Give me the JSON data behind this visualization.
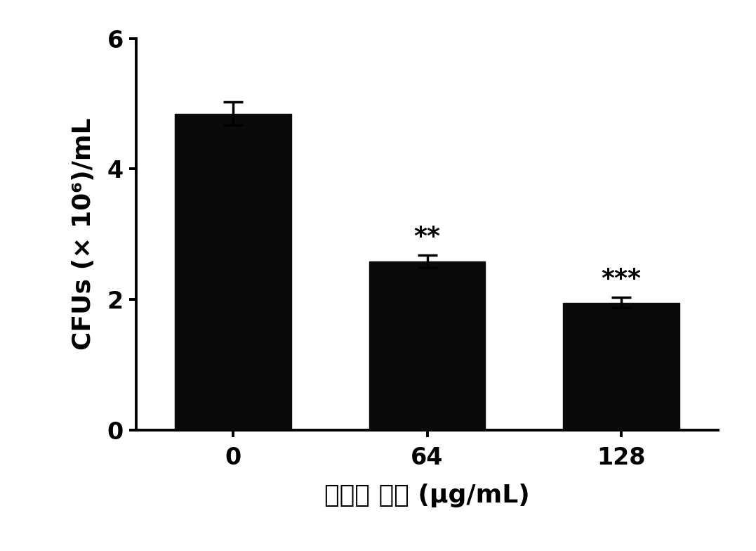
{
  "categories": [
    "0",
    "64",
    "128"
  ],
  "values": [
    4.85,
    2.58,
    1.95
  ],
  "errors": [
    0.18,
    0.1,
    0.08
  ],
  "bar_color": "#0a0a0a",
  "bar_width": 0.6,
  "ylim": [
    0,
    6
  ],
  "yticks": [
    0,
    2,
    4,
    6
  ],
  "ylabel": "CFUs (× 10⁶)/mL",
  "xlabel": "白杨素 浓度 (μg/mL)",
  "significance": [
    "",
    "**",
    "***"
  ],
  "sig_fontsize": 26,
  "tick_fontsize": 24,
  "label_fontsize": 26,
  "background_color": "#ffffff",
  "spine_linewidth": 2.8,
  "capsize": 10,
  "error_linewidth": 2.5,
  "bar_positions": [
    0,
    1,
    2
  ]
}
